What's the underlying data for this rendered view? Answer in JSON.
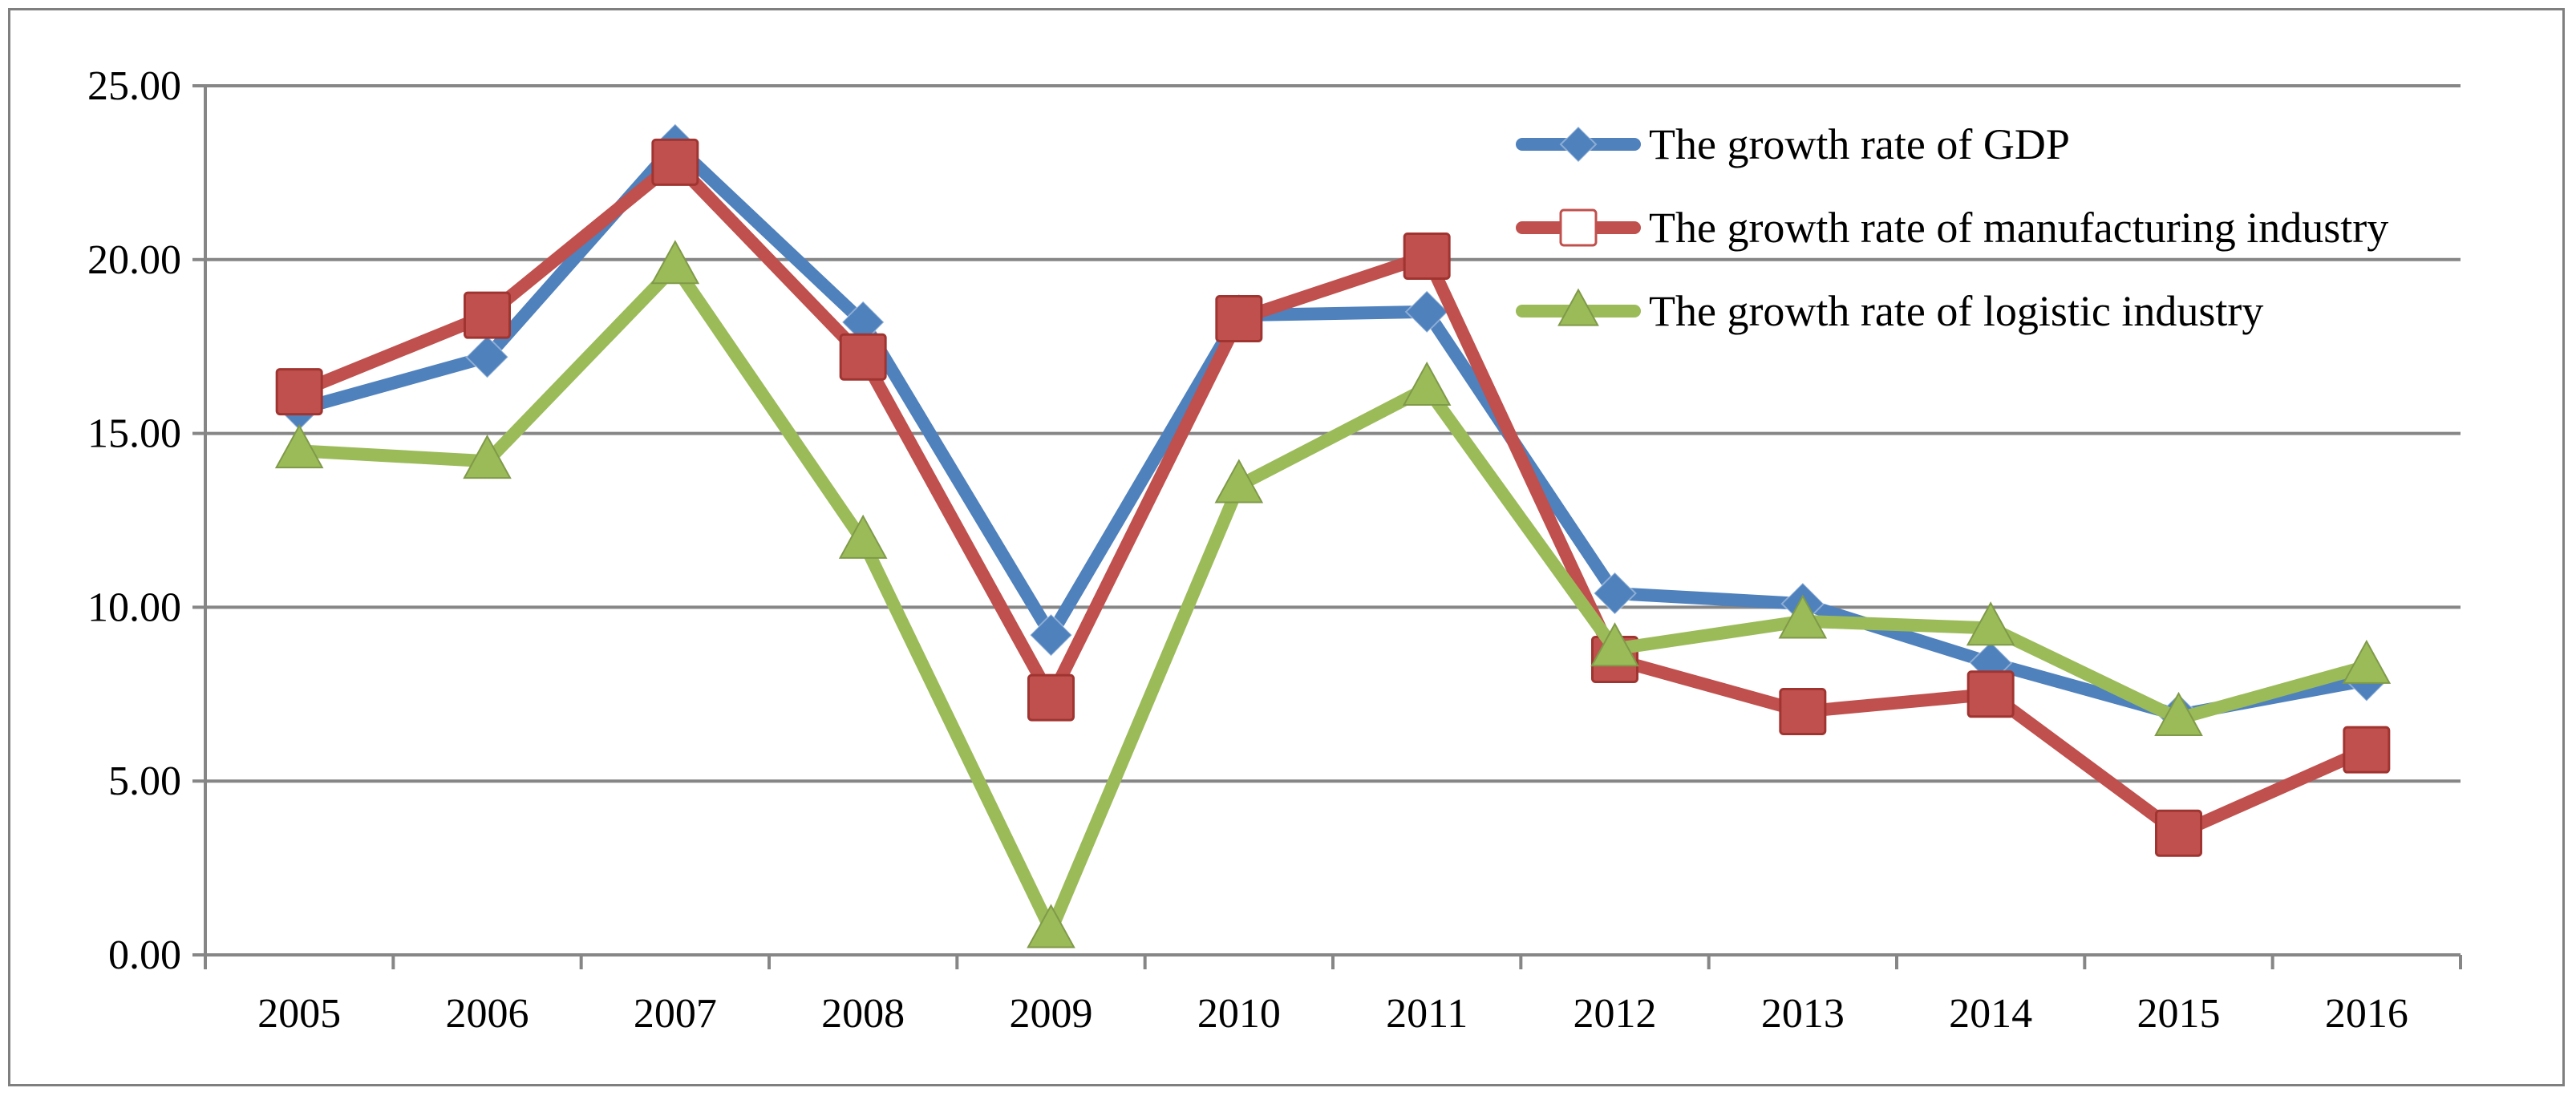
{
  "chart_data": {
    "type": "line",
    "title": "",
    "xlabel": "",
    "ylabel": "",
    "categories": [
      "2005",
      "2006",
      "2007",
      "2008",
      "2009",
      "2010",
      "2011",
      "2012",
      "2013",
      "2014",
      "2015",
      "2016"
    ],
    "ylim": [
      0,
      25
    ],
    "yticks": [
      "0.00",
      "5.00",
      "10.00",
      "15.00",
      "20.00",
      "25.00"
    ],
    "grid": true,
    "legend_position": "top-right",
    "series": [
      {
        "name": "The growth rate of GDP",
        "color": "#4f81bd",
        "marker": "diamond",
        "values": [
          15.7,
          17.2,
          23.3,
          18.2,
          9.2,
          18.4,
          18.5,
          10.4,
          10.1,
          8.4,
          6.9,
          7.9
        ]
      },
      {
        "name": "The growth rate of manufacturing industry",
        "color": "#c0504d",
        "marker": "square",
        "values": [
          16.2,
          18.4,
          22.8,
          17.2,
          7.4,
          18.3,
          20.1,
          8.5,
          7.0,
          7.5,
          3.5,
          5.9
        ]
      },
      {
        "name": "The growth rate of logistic industry",
        "color": "#9bbb59",
        "marker": "triangle",
        "values": [
          14.5,
          14.2,
          19.8,
          11.9,
          0.7,
          13.5,
          16.3,
          8.8,
          9.6,
          9.4,
          6.8,
          8.3
        ]
      }
    ]
  }
}
